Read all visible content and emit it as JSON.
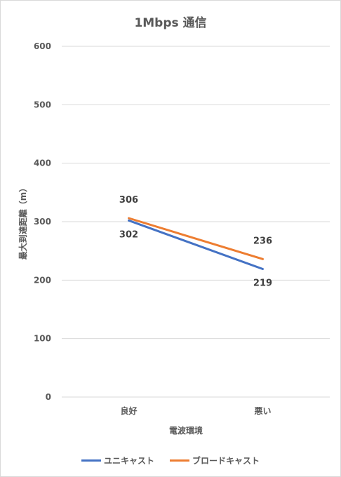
{
  "chart_data": {
    "type": "line",
    "title": "1Mbps 通信",
    "xlabel": "電波環境",
    "ylabel": "最大到達距離（m）",
    "categories": [
      "良好",
      "悪い"
    ],
    "ylim": [
      0,
      600
    ],
    "yticks": [
      0,
      100,
      200,
      300,
      400,
      500,
      600
    ],
    "grid": true,
    "legend_position": "bottom",
    "series": [
      {
        "name": "ユニキャスト",
        "values": [
          302,
          219
        ],
        "color": "#4472c4",
        "label_position": "below"
      },
      {
        "name": "ブロードキャスト",
        "values": [
          306,
          236
        ],
        "color": "#ed7d31",
        "label_position": "above"
      }
    ]
  }
}
